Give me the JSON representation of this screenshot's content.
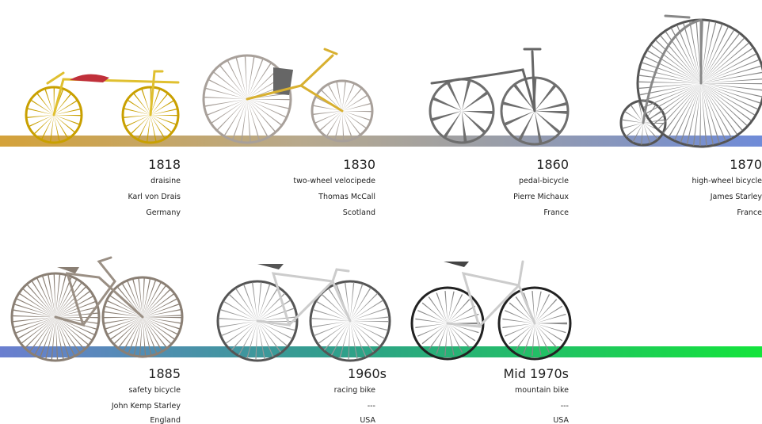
{
  "entries": [
    {
      "year": "1818",
      "name": "draisine",
      "inventor": "Karl von Drais",
      "country": "Germany"
    },
    {
      "year": "1830",
      "name": "two-wheel velocipede",
      "inventor": "Thomas McCall",
      "country": "Scotland"
    },
    {
      "year": "1860",
      "name": "pedal-bicycle",
      "inventor": "Pierre Michaux",
      "country": "France"
    },
    {
      "year": "1870",
      "name": "high-wheel bicycle",
      "inventor": "James Starley",
      "country": "France"
    },
    {
      "year": "1885",
      "name": "safety bicycle",
      "inventor": "John Kemp Starley",
      "country": "England"
    },
    {
      "year": "1960s",
      "name": "racing bike",
      "inventor": "---",
      "country": "USA"
    },
    {
      "year": "Mid 1970s",
      "name": "mountain bike",
      "inventor": "---",
      "country": "USA"
    }
  ]
}
